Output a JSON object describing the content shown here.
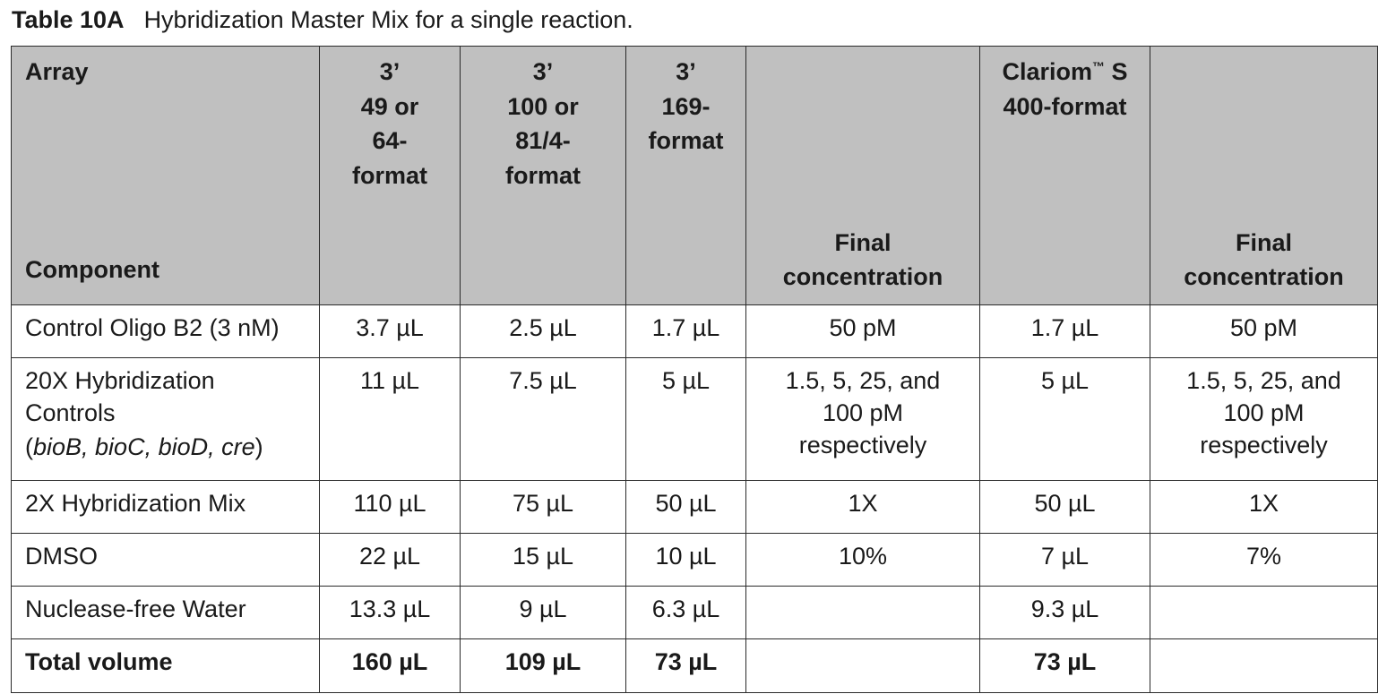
{
  "caption": {
    "number": "Table 10A",
    "text": "Hybridization Master Mix for a single reaction."
  },
  "header": {
    "array_label": "Array",
    "component_label": "Component",
    "col1": [
      "3’",
      "49 or",
      "64-",
      "format"
    ],
    "col2": [
      "3’",
      "100 or",
      "81/4-",
      "format"
    ],
    "col3": [
      "3’",
      "169-",
      "format"
    ],
    "col4_bottom": [
      "Final",
      "concentration"
    ],
    "col5_top": [
      "Clariom",
      "S",
      "400-format"
    ],
    "col5_trademark": "™",
    "col6_bottom": [
      "Final",
      "concentration"
    ]
  },
  "rows": [
    {
      "component": "Control Oligo B2 (3 nM)",
      "c1": "3.7 µL",
      "c2": "2.5 µL",
      "c3": "1.7 µL",
      "final1": "50 pM",
      "c5": "1.7 µL",
      "final2": "50 pM"
    },
    {
      "component_lines": [
        "20X Hybridization",
        "Controls"
      ],
      "component_paren_open": "(",
      "component_italic": "bioB, bioC, bioD, cre",
      "component_paren_close": ")",
      "c1": "11 µL",
      "c2": "7.5 µL",
      "c3": "5 µL",
      "final1_lines": [
        "1.5, 5, 25, and",
        "100 pM",
        "respectively"
      ],
      "c5": "5 µL",
      "final2_lines": [
        "1.5, 5, 25, and",
        "100 pM",
        "respectively"
      ]
    },
    {
      "component": "2X Hybridization Mix",
      "c1": "110 µL",
      "c2": "75 µL",
      "c3": "50 µL",
      "final1": "1X",
      "c5": "50 µL",
      "final2": "1X"
    },
    {
      "component": "DMSO",
      "c1": "22 µL",
      "c2": "15 µL",
      "c3": "10 µL",
      "final1": "10%",
      "c5": "7 µL",
      "final2": "7%"
    },
    {
      "component": "Nuclease-free Water",
      "c1": "13.3 µL",
      "c2": "9 µL",
      "c3": "6.3 µL",
      "final1": "",
      "c5": "9.3 µL",
      "final2": ""
    },
    {
      "component": "Total volume",
      "c1": "160 µL",
      "c2": "109 µL",
      "c3": "73 µL",
      "final1": "",
      "c5": "73 µL",
      "final2": ""
    }
  ]
}
